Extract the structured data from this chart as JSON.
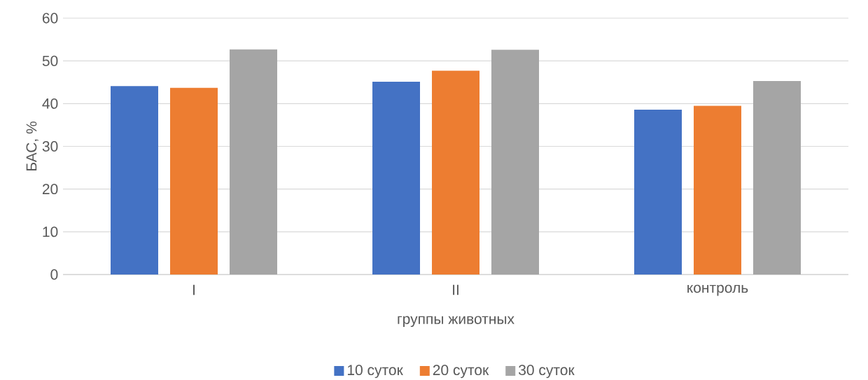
{
  "chart_data": {
    "type": "bar",
    "xlabel": "группы животных",
    "ylabel": "БАС, %",
    "categories": [
      "I",
      "II",
      "контроль"
    ],
    "series": [
      {
        "name": "10 суток",
        "color": "#4472c4",
        "values": [
          44.1,
          45.1,
          38.6
        ]
      },
      {
        "name": "20 суток",
        "color": "#ed7d31",
        "values": [
          43.7,
          47.7,
          39.5
        ]
      },
      {
        "name": "30 суток",
        "color": "#a5a5a5",
        "values": [
          52.7,
          52.6,
          45.3
        ]
      }
    ],
    "ylim": [
      0,
      60
    ],
    "yticks": [
      0,
      10,
      20,
      30,
      40,
      50,
      60
    ],
    "grid": "y",
    "legend": "bottom"
  }
}
